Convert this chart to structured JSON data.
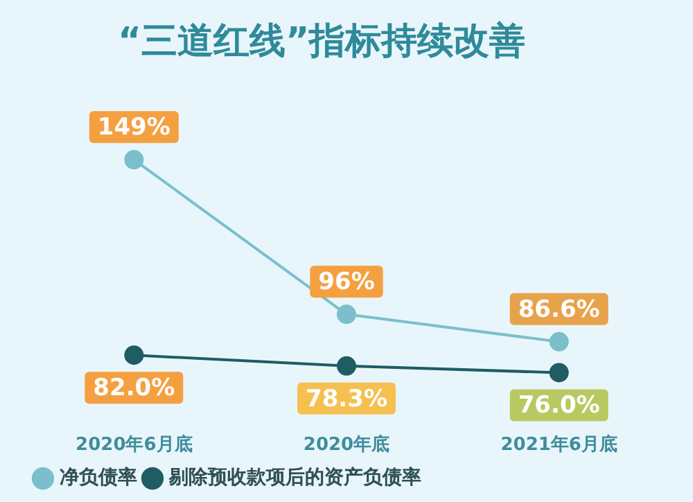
{
  "chart_data": {
    "type": "line",
    "title": "“三道红线”指标持续改善",
    "categories": [
      "2020年6月底",
      "2020年底",
      "2021年6月底"
    ],
    "series": [
      {
        "name": "净负债率",
        "color": "#7bbfcc",
        "values": [
          149,
          96,
          86.6
        ],
        "value_labels": [
          "149%",
          "96%",
          "86.6%"
        ]
      },
      {
        "name": "剔除预收款项后的资产负债率",
        "color": "#1f5c63",
        "values": [
          82.0,
          78.3,
          76.0
        ],
        "value_labels": [
          "82.0%",
          "78.3%",
          "76.0%"
        ]
      }
    ],
    "data_labels": true,
    "legend": "bottom left",
    "marker": "circle",
    "line_style": "solid",
    "grid": false
  }
}
